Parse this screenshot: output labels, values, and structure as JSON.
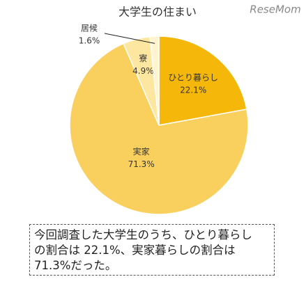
{
  "chart_data": {
    "type": "pie",
    "title": "大学生の住まい",
    "categories": [
      "ひとり暮らし",
      "実家",
      "寮",
      "居候"
    ],
    "values": [
      22.1,
      71.3,
      4.9,
      1.6
    ],
    "value_labels": [
      "22.1%",
      "71.3%",
      "4.9%",
      "1.6%"
    ],
    "colors": [
      "#f5b70a",
      "#f9cf5e",
      "#fde6a0",
      "#fff4cf"
    ]
  },
  "watermark": "ReseMom",
  "caption": [
    "今回調査した大学生のうち、ひとり暮らし",
    "の割合は 22.1%、実家暮らしの割合は",
    "71.3%だった。"
  ]
}
